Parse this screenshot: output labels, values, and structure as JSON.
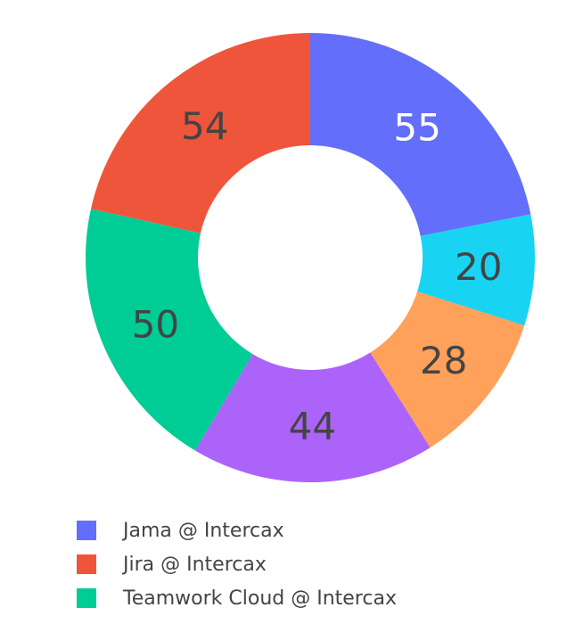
{
  "chart_data": {
    "type": "pie",
    "hole": true,
    "values": [
      55,
      20,
      28,
      44,
      50,
      54
    ],
    "colors": [
      "#636efa",
      "#19d3f3",
      "#ffa15a",
      "#ab63fa",
      "#00cc96",
      "#ef553b"
    ],
    "label_colors": [
      "#ffffff",
      "#444444",
      "#444444",
      "#444444",
      "#444444",
      "#444444"
    ],
    "data_labels": [
      "55",
      "20",
      "28",
      "44",
      "50",
      "54"
    ],
    "direction": "clockwise",
    "start": "top",
    "legend": {
      "placement": "bottom-left",
      "entries": [
        {
          "label": "Jama @ Intercax",
          "color": "#636efa"
        },
        {
          "label": "Jira @ Intercax",
          "color": "#ef553b"
        },
        {
          "label": "Teamwork Cloud @ Intercax",
          "color": "#00cc96"
        }
      ]
    }
  }
}
